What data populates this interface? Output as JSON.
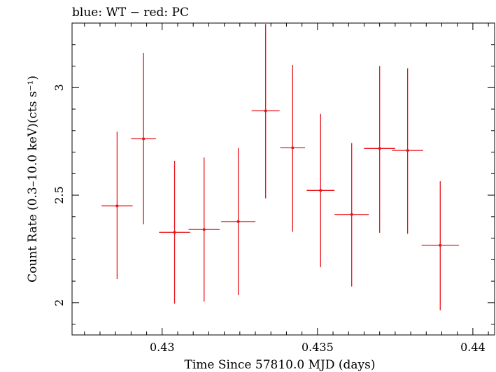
{
  "chart_data": {
    "type": "scatter",
    "title": "blue: WT − red: PC",
    "xlabel": "Time Since 57810.0 MJD (days)",
    "ylabel": "Count Rate (0.3–10.0 keV)(cts s⁻¹)",
    "xlim": [
      0.4271,
      0.4407
    ],
    "ylim": [
      1.85,
      3.3
    ],
    "x_ticks": [
      {
        "value": 0.43,
        "label": "0.43"
      },
      {
        "value": 0.435,
        "label": "0.435"
      },
      {
        "value": 0.44,
        "label": "0.44"
      }
    ],
    "y_ticks": [
      {
        "value": 2,
        "label": "2"
      },
      {
        "value": 2.5,
        "label": "2.5"
      },
      {
        "value": 3,
        "label": "3"
      }
    ],
    "grid": false,
    "series": [
      {
        "color": "#e8141c",
        "points": [
          {
            "x": 0.42855,
            "y": 2.45,
            "xerr": 0.0005,
            "ylo": 2.11,
            "yhi": 2.795
          },
          {
            "x": 0.4294,
            "y": 2.762,
            "xerr": 0.0004,
            "ylo": 2.365,
            "yhi": 3.16
          },
          {
            "x": 0.4304,
            "y": 2.327,
            "xerr": 0.0005,
            "ylo": 1.995,
            "yhi": 2.66
          },
          {
            "x": 0.43135,
            "y": 2.34,
            "xerr": 0.0005,
            "ylo": 2.005,
            "yhi": 2.675
          },
          {
            "x": 0.43245,
            "y": 2.377,
            "xerr": 0.00055,
            "ylo": 2.035,
            "yhi": 2.72
          },
          {
            "x": 0.43333,
            "y": 2.892,
            "xerr": 0.00045,
            "ylo": 2.485,
            "yhi": 3.295
          },
          {
            "x": 0.4342,
            "y": 2.72,
            "xerr": 0.0004,
            "ylo": 2.33,
            "yhi": 3.105
          },
          {
            "x": 0.4351,
            "y": 2.522,
            "xerr": 0.00045,
            "ylo": 2.165,
            "yhi": 2.878
          },
          {
            "x": 0.4361,
            "y": 2.41,
            "xerr": 0.00055,
            "ylo": 2.075,
            "yhi": 2.742
          },
          {
            "x": 0.437,
            "y": 2.717,
            "xerr": 0.0005,
            "ylo": 2.325,
            "yhi": 3.1
          },
          {
            "x": 0.4379,
            "y": 2.708,
            "xerr": 0.0005,
            "ylo": 2.32,
            "yhi": 3.09
          },
          {
            "x": 0.43895,
            "y": 2.267,
            "xerr": 0.0006,
            "ylo": 1.965,
            "yhi": 2.565
          }
        ]
      }
    ]
  }
}
